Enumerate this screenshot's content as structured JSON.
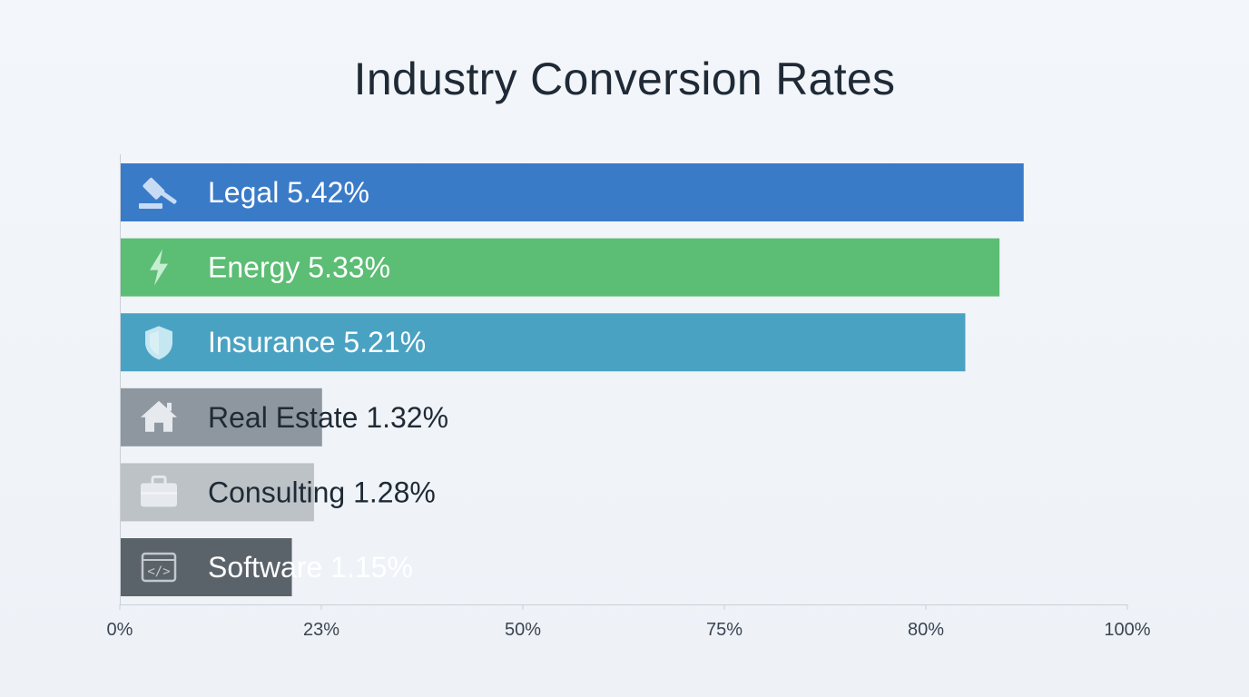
{
  "chart_data": {
    "type": "bar",
    "orientation": "horizontal",
    "title": "Industry Conversion Rates",
    "categories": [
      "Legal",
      "Energy",
      "Insurance",
      "Real Estate",
      "Consulting",
      "Software"
    ],
    "values": [
      5.42,
      5.33,
      5.21,
      1.32,
      1.28,
      1.15
    ],
    "value_labels": [
      "5.42%",
      "5.33%",
      "5.21%",
      "1.32%",
      "1.28%",
      "1.15%"
    ],
    "bar_fraction_of_axis": [
      0.897,
      0.873,
      0.839,
      0.2,
      0.192,
      0.17
    ],
    "icons": [
      "gavel-icon",
      "lightning-bolt-icon",
      "shield-icon",
      "house-icon",
      "briefcase-icon",
      "code-window-icon"
    ],
    "colors": [
      "#3a7bc8",
      "#5cbd74",
      "#4aa2c2",
      "#8e979f",
      "#bcc2c6",
      "#5b636a"
    ],
    "label_colors": [
      "#ffffff",
      "#ffffff",
      "#ffffff",
      "#1f2a36",
      "#1f2a36",
      "#ffffff"
    ],
    "x_tick_labels": [
      "0%",
      "23%",
      "50%",
      "75%",
      "80%",
      "100%"
    ],
    "grid": false,
    "legend": "none"
  }
}
